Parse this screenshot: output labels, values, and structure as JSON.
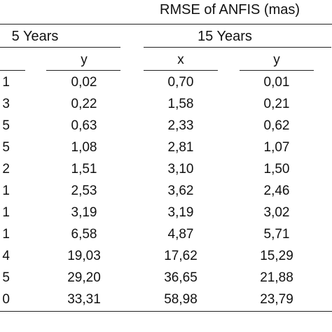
{
  "table": {
    "super_header": "RMSE of ANFIS (mas)",
    "groups": [
      "5 Years",
      "15 Years"
    ],
    "column_headers": [
      "y",
      "x",
      "y"
    ],
    "rows": [
      {
        "label": "1",
        "c1": "0,02",
        "c2": "0,70",
        "c3": "0,01"
      },
      {
        "label": "3",
        "c1": "0,22",
        "c2": "1,58",
        "c3": "0,21"
      },
      {
        "label": "5",
        "c1": "0,63",
        "c2": "2,33",
        "c3": "0,62"
      },
      {
        "label": "5",
        "c1": "1,08",
        "c2": "2,81",
        "c3": "1,07"
      },
      {
        "label": "2",
        "c1": "1,51",
        "c2": "3,10",
        "c3": "1,50"
      },
      {
        "label": "1",
        "c1": "2,53",
        "c2": "3,62",
        "c3": "2,46"
      },
      {
        "label": "1",
        "c1": "3,19",
        "c2": "3,19",
        "c3": "3,02"
      },
      {
        "label": "1",
        "c1": "6,58",
        "c2": "4,87",
        "c3": "5,71"
      },
      {
        "label": "4",
        "c1": "19,03",
        "c2": "17,62",
        "c3": "15,29"
      },
      {
        "label": "5",
        "c1": "29,20",
        "c2": "36,65",
        "c3": "21,88"
      },
      {
        "label": "0",
        "c1": "33,31",
        "c2": "58,98",
        "c3": "23,79"
      }
    ]
  }
}
